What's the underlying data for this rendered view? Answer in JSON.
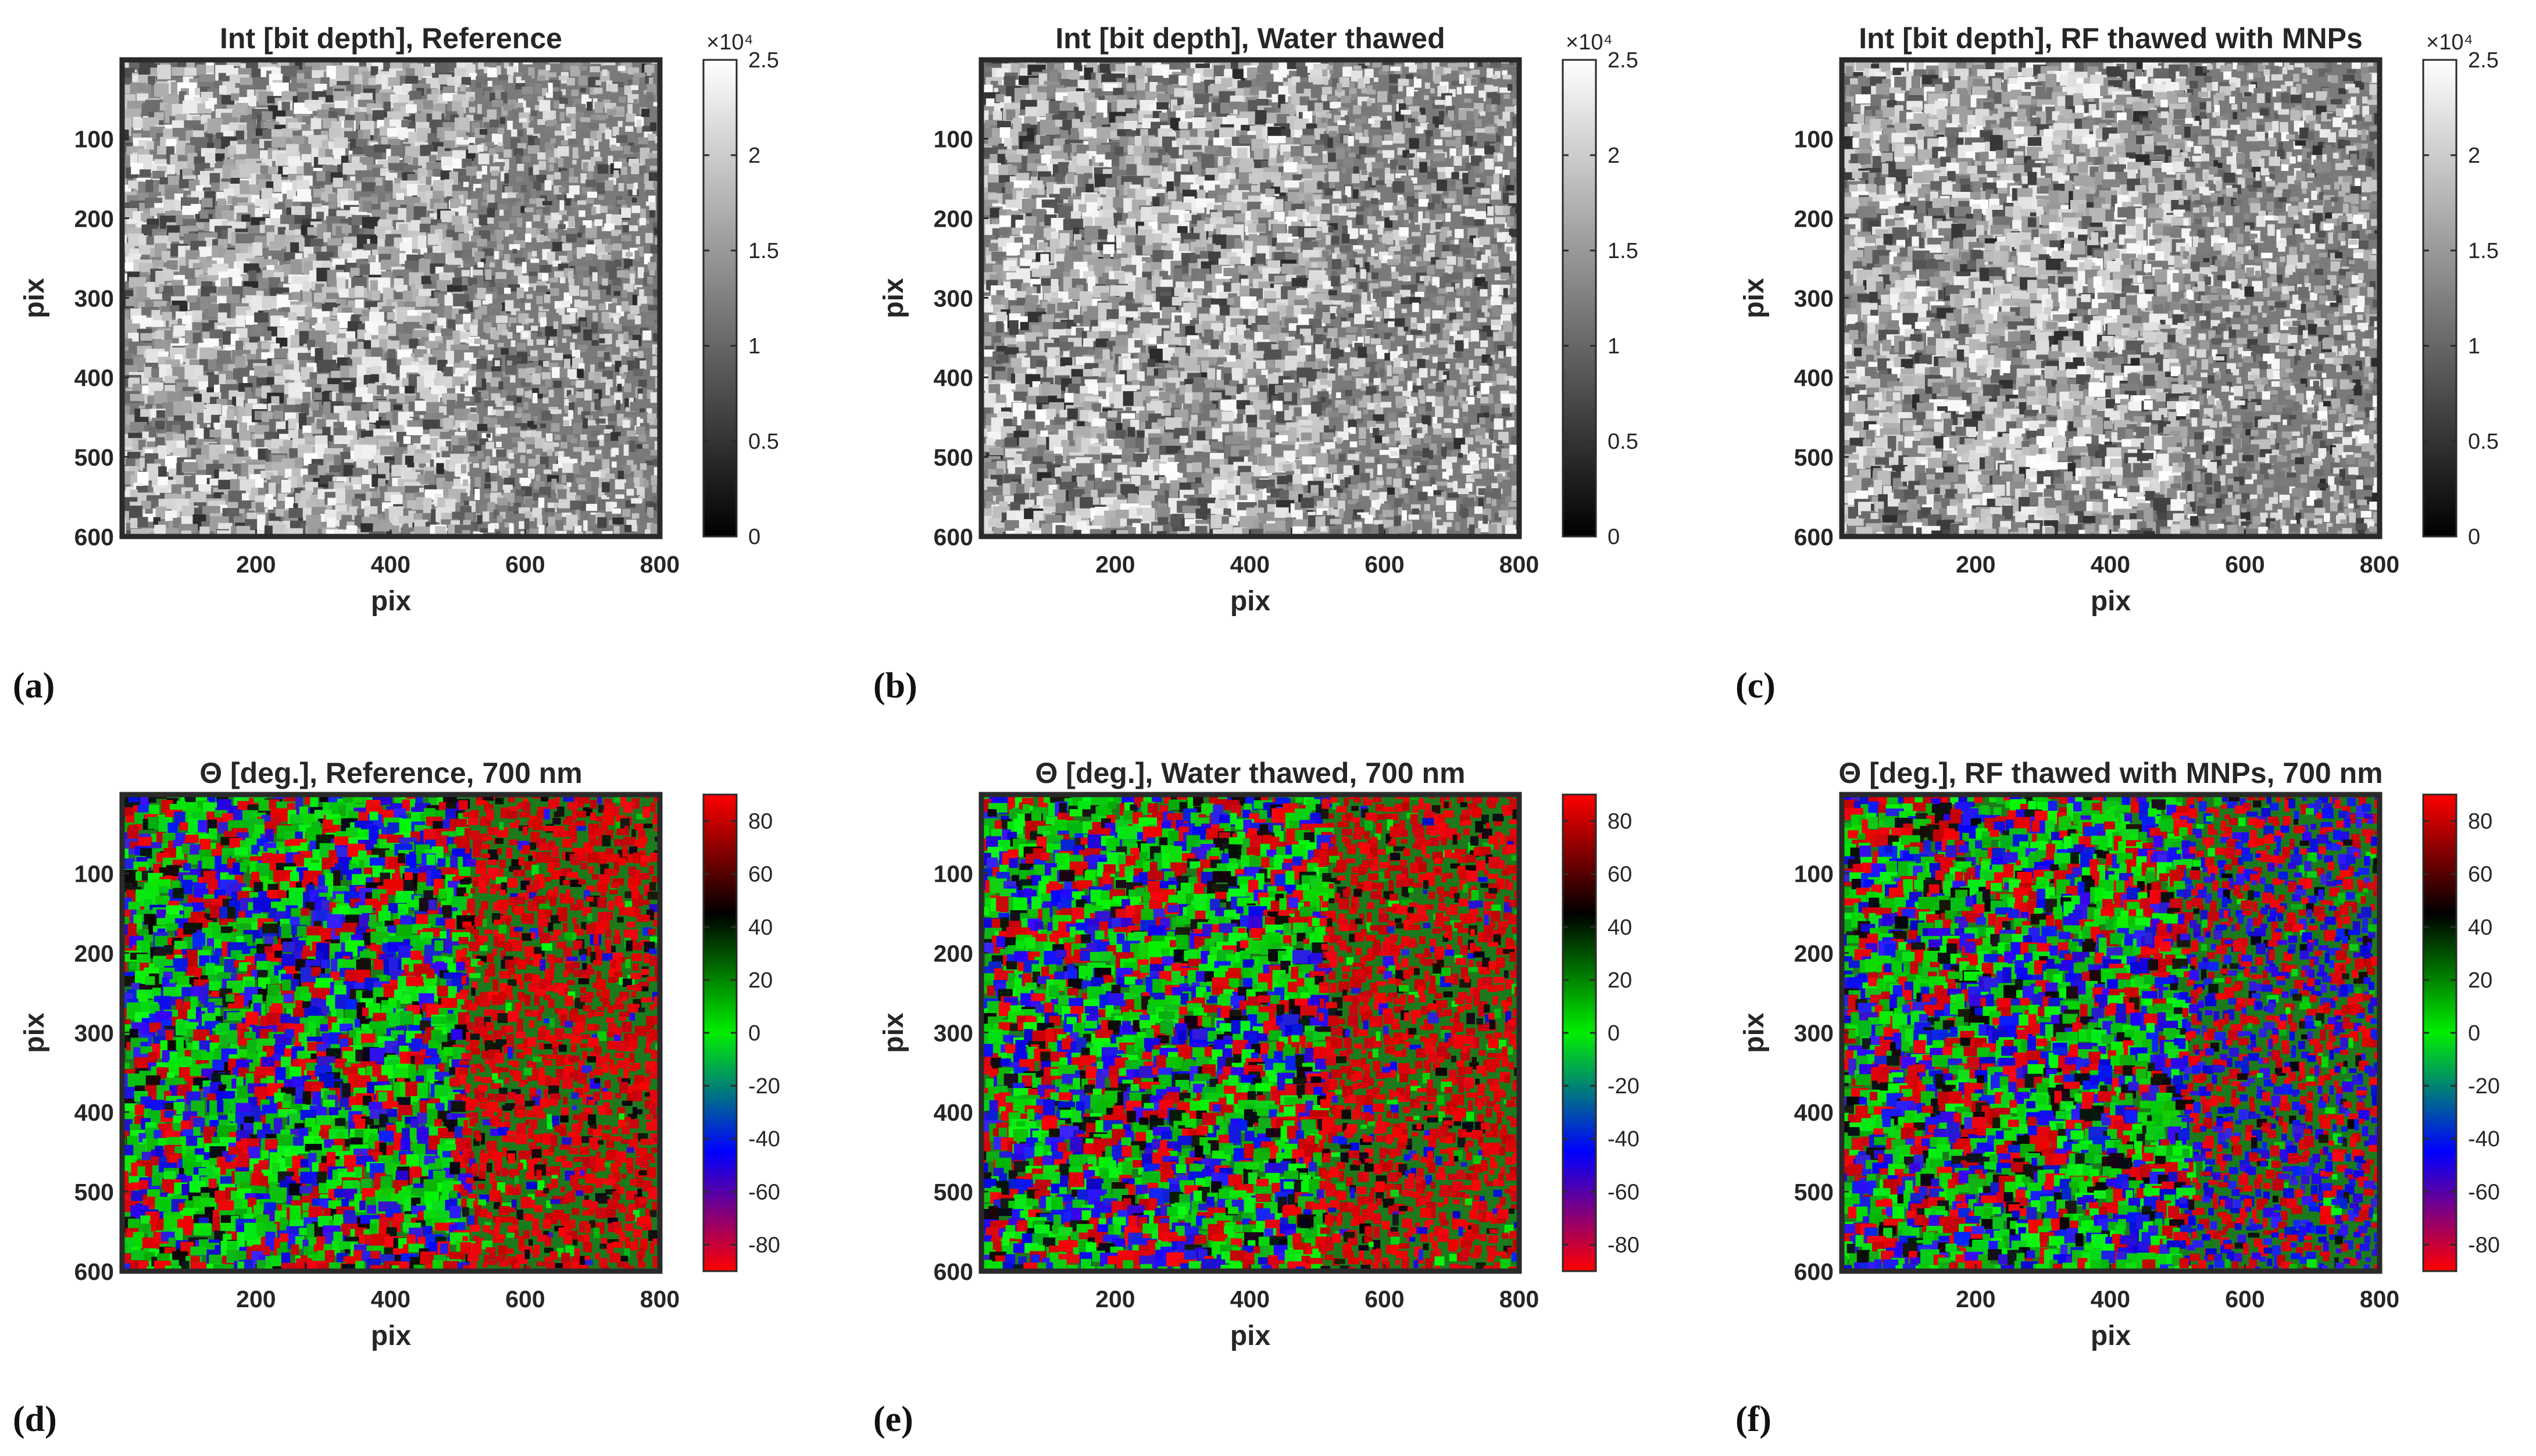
{
  "figure": {
    "panel_labels": [
      "(a)",
      "(b)",
      "(c)",
      "(d)",
      "(e)",
      "(f)"
    ]
  },
  "chart_data": [
    {
      "type": "heatmap",
      "panel": "(a)",
      "title": "Int [bit depth], Reference",
      "xlabel": "pix",
      "ylabel": "pix",
      "xlim": [
        1,
        800
      ],
      "ylim": [
        1,
        600
      ],
      "x_ticks": [
        200,
        400,
        600,
        800
      ],
      "y_ticks": [
        100,
        200,
        300,
        400,
        500,
        600
      ],
      "colorbar": {
        "colormap": "gray",
        "range": [
          0,
          25000
        ],
        "ticks": [
          0,
          0.5,
          1,
          1.5,
          2,
          2.5
        ],
        "exponent_label": "×10⁴"
      }
    },
    {
      "type": "heatmap",
      "panel": "(b)",
      "title": "Int [bit depth], Water thawed",
      "xlabel": "pix",
      "ylabel": "pix",
      "xlim": [
        1,
        800
      ],
      "ylim": [
        1,
        600
      ],
      "x_ticks": [
        200,
        400,
        600,
        800
      ],
      "y_ticks": [
        100,
        200,
        300,
        400,
        500,
        600
      ],
      "colorbar": {
        "colormap": "gray",
        "range": [
          0,
          25000
        ],
        "ticks": [
          0,
          0.5,
          1,
          1.5,
          2,
          2.5
        ],
        "exponent_label": "×10⁴"
      }
    },
    {
      "type": "heatmap",
      "panel": "(c)",
      "title": "Int [bit depth], RF thawed with MNPs",
      "xlabel": "pix",
      "ylabel": "pix",
      "xlim": [
        1,
        800
      ],
      "ylim": [
        1,
        600
      ],
      "x_ticks": [
        200,
        400,
        600,
        800
      ],
      "y_ticks": [
        100,
        200,
        300,
        400,
        500,
        600
      ],
      "colorbar": {
        "colormap": "gray",
        "range": [
          0,
          25000
        ],
        "ticks": [
          0,
          0.5,
          1,
          1.5,
          2,
          2.5
        ],
        "exponent_label": "×10⁴"
      }
    },
    {
      "type": "heatmap",
      "panel": "(d)",
      "title": "Θ [deg.], Reference, 700 nm",
      "xlabel": "pix",
      "ylabel": "pix",
      "xlim": [
        1,
        800
      ],
      "ylim": [
        1,
        600
      ],
      "x_ticks": [
        200,
        400,
        600,
        800
      ],
      "y_ticks": [
        100,
        200,
        300,
        400,
        500,
        600
      ],
      "colorbar": {
        "colormap": "red-blue-green-black-red",
        "range": [
          -90,
          90
        ],
        "ticks": [
          -80,
          -60,
          -40,
          -20,
          0,
          20,
          40,
          60,
          80
        ]
      }
    },
    {
      "type": "heatmap",
      "panel": "(e)",
      "title": "Θ [deg.], Water thawed, 700 nm",
      "xlabel": "pix",
      "ylabel": "pix",
      "xlim": [
        1,
        800
      ],
      "ylim": [
        1,
        600
      ],
      "x_ticks": [
        200,
        400,
        600,
        800
      ],
      "y_ticks": [
        100,
        200,
        300,
        400,
        500,
        600
      ],
      "colorbar": {
        "colormap": "red-blue-green-black-red",
        "range": [
          -90,
          90
        ],
        "ticks": [
          -80,
          -60,
          -40,
          -20,
          0,
          20,
          40,
          60,
          80
        ]
      }
    },
    {
      "type": "heatmap",
      "panel": "(f)",
      "title": "Θ [deg.], RF thawed with MNPs, 700 nm",
      "xlabel": "pix",
      "ylabel": "pix",
      "xlim": [
        1,
        800
      ],
      "ylim": [
        1,
        600
      ],
      "x_ticks": [
        200,
        400,
        600,
        800
      ],
      "y_ticks": [
        100,
        200,
        300,
        400,
        500,
        600
      ],
      "colorbar": {
        "colormap": "red-blue-green-black-red",
        "range": [
          -90,
          90
        ],
        "ticks": [
          -80,
          -60,
          -40,
          -20,
          0,
          20,
          40,
          60,
          80
        ]
      }
    }
  ]
}
